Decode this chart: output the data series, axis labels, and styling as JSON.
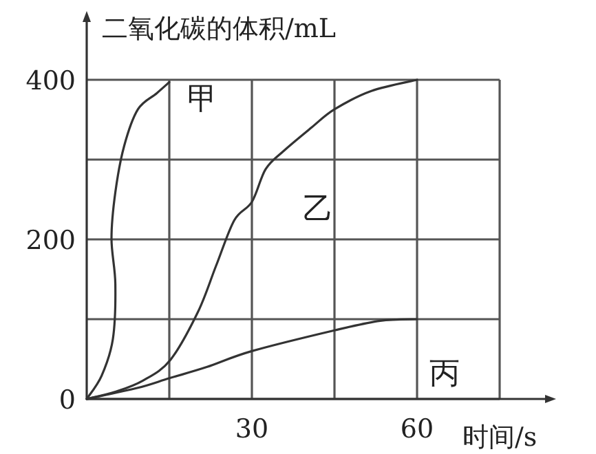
{
  "chart_data": {
    "type": "line",
    "xlabel": "时间/s",
    "ylabel": "二氧化碳的体积/mL",
    "xlim": [
      0,
      75
    ],
    "ylim": [
      0,
      400
    ],
    "xticks": [
      {
        "value": 15,
        "label": null
      },
      30,
      {
        "value": 45,
        "label": null
      },
      60,
      {
        "value": 75,
        "label": null
      }
    ],
    "yticks": [
      0,
      {
        "value": 100,
        "label": null
      },
      200,
      {
        "value": 300,
        "label": null
      },
      400
    ],
    "grid": true,
    "marker": "none",
    "line_style": "solid",
    "series": [
      {
        "name": "甲",
        "color": "#333333",
        "x": [
          0,
          2.7,
          4.75,
          5.2,
          4.5,
          5.2,
          6.8,
          9.3,
          12.7,
          15
        ],
        "values": [
          0,
          29,
          75,
          144,
          201,
          259,
          317,
          363,
          383,
          397
        ]
      },
      {
        "name": "乙",
        "color": "#333333",
        "x": [
          0,
          5.2,
          10.2,
          15.2,
          20.2,
          23.5,
          26.8,
          30,
          32.5,
          35.8,
          40.8,
          45,
          51.7,
          60
        ],
        "values": [
          0,
          9,
          23,
          49,
          109,
          167,
          224,
          247,
          288,
          311,
          340,
          363,
          386,
          400
        ]
      },
      {
        "name": "丙",
        "color": "#333333",
        "x": [
          0,
          9.3,
          15,
          21.8,
          30,
          45,
          53.3,
          60
        ],
        "values": [
          0,
          14,
          26,
          40,
          60,
          86,
          98,
          100
        ]
      }
    ]
  }
}
